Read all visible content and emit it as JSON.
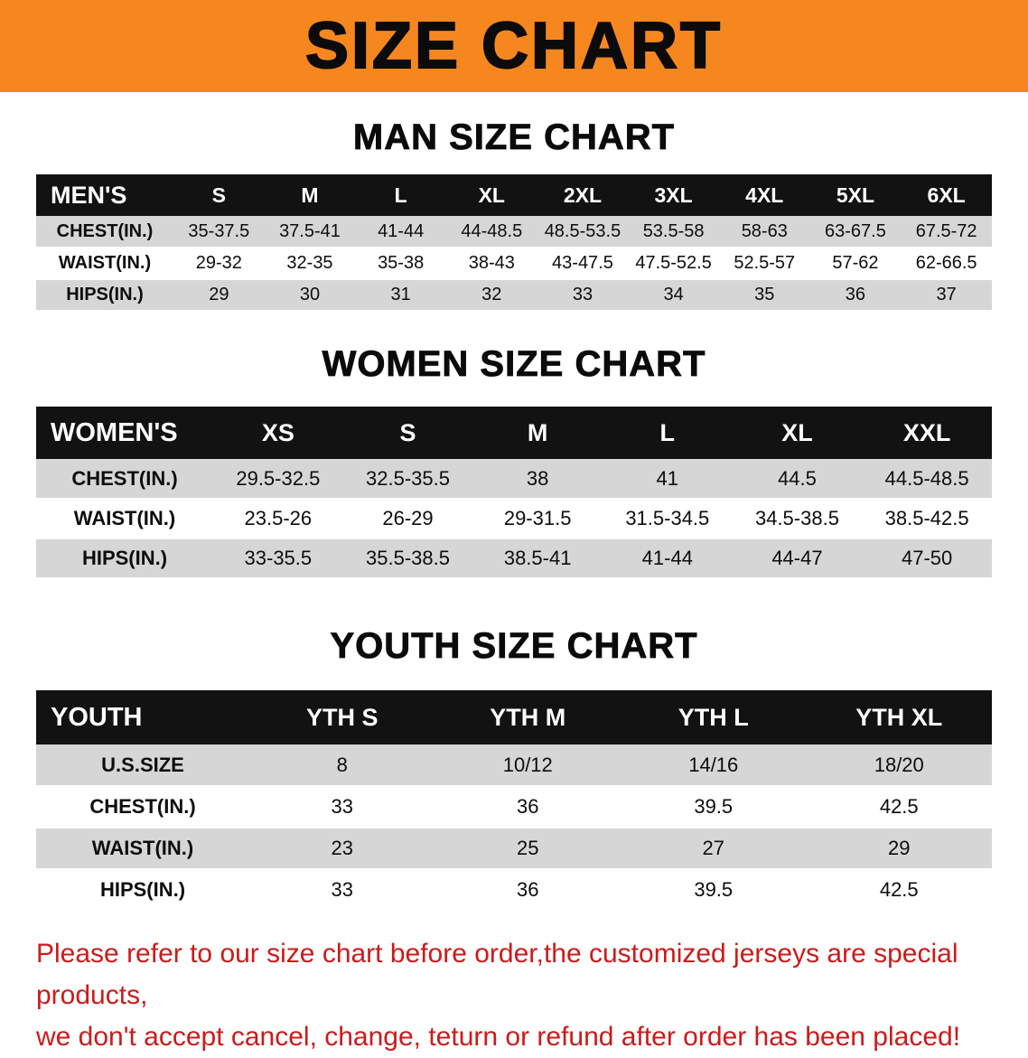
{
  "banner": {
    "title": "SIZE CHART"
  },
  "sections": [
    {
      "id": "men",
      "heading": "MAN SIZE CHART",
      "table": {
        "corner_label": "MEN'S",
        "columns": [
          "S",
          "M",
          "L",
          "XL",
          "2XL",
          "3XL",
          "4XL",
          "5XL",
          "6XL"
        ],
        "rows": [
          {
            "label": "CHEST(IN.)",
            "values": [
              "35-37.5",
              "37.5-41",
              "41-44",
              "44-48.5",
              "48.5-53.5",
              "53.5-58",
              "58-63",
              "63-67.5",
              "67.5-72"
            ]
          },
          {
            "label": "WAIST(IN.)",
            "values": [
              "29-32",
              "32-35",
              "35-38",
              "38-43",
              "43-47.5",
              "47.5-52.5",
              "52.5-57",
              "57-62",
              "62-66.5"
            ]
          },
          {
            "label": "HIPS(IN.)",
            "values": [
              "29",
              "30",
              "31",
              "32",
              "33",
              "34",
              "35",
              "36",
              "37"
            ]
          }
        ]
      }
    },
    {
      "id": "women",
      "heading": "WOMEN SIZE CHART",
      "table": {
        "corner_label": "WOMEN'S",
        "columns": [
          "XS",
          "S",
          "M",
          "L",
          "XL",
          "XXL"
        ],
        "rows": [
          {
            "label": "CHEST(IN.)",
            "values": [
              "29.5-32.5",
              "32.5-35.5",
              "38",
              "41",
              "44.5",
              "44.5-48.5"
            ]
          },
          {
            "label": "WAIST(IN.)",
            "values": [
              "23.5-26",
              "26-29",
              "29-31.5",
              "31.5-34.5",
              "34.5-38.5",
              "38.5-42.5"
            ]
          },
          {
            "label": "HIPS(IN.)",
            "values": [
              "33-35.5",
              "35.5-38.5",
              "38.5-41",
              "41-44",
              "44-47",
              "47-50"
            ]
          }
        ]
      }
    },
    {
      "id": "youth",
      "heading": "YOUTH SIZE CHART",
      "table": {
        "corner_label": "YOUTH",
        "columns": [
          "YTH S",
          "YTH M",
          "YTH L",
          "YTH XL"
        ],
        "rows": [
          {
            "label": "U.S.SIZE",
            "values": [
              "8",
              "10/12",
              "14/16",
              "18/20"
            ]
          },
          {
            "label": "CHEST(IN.)",
            "values": [
              "33",
              "36",
              "39.5",
              "42.5"
            ]
          },
          {
            "label": "WAIST(IN.)",
            "values": [
              "23",
              "25",
              "27",
              "29"
            ]
          },
          {
            "label": "HIPS(IN.)",
            "values": [
              "33",
              "36",
              "39.5",
              "42.5"
            ]
          }
        ]
      }
    }
  ],
  "disclaimer": {
    "line1": "Please refer to our size chart before order,the customized jerseys are special products,",
    "line2": "we don't accept cancel, change, teturn or refund after order has been placed!"
  },
  "colors": {
    "banner_orange": "#F6871F",
    "header_black": "#121212",
    "row_gray": "#d6d6d6",
    "disclaimer_red": "#cb1b1b"
  }
}
